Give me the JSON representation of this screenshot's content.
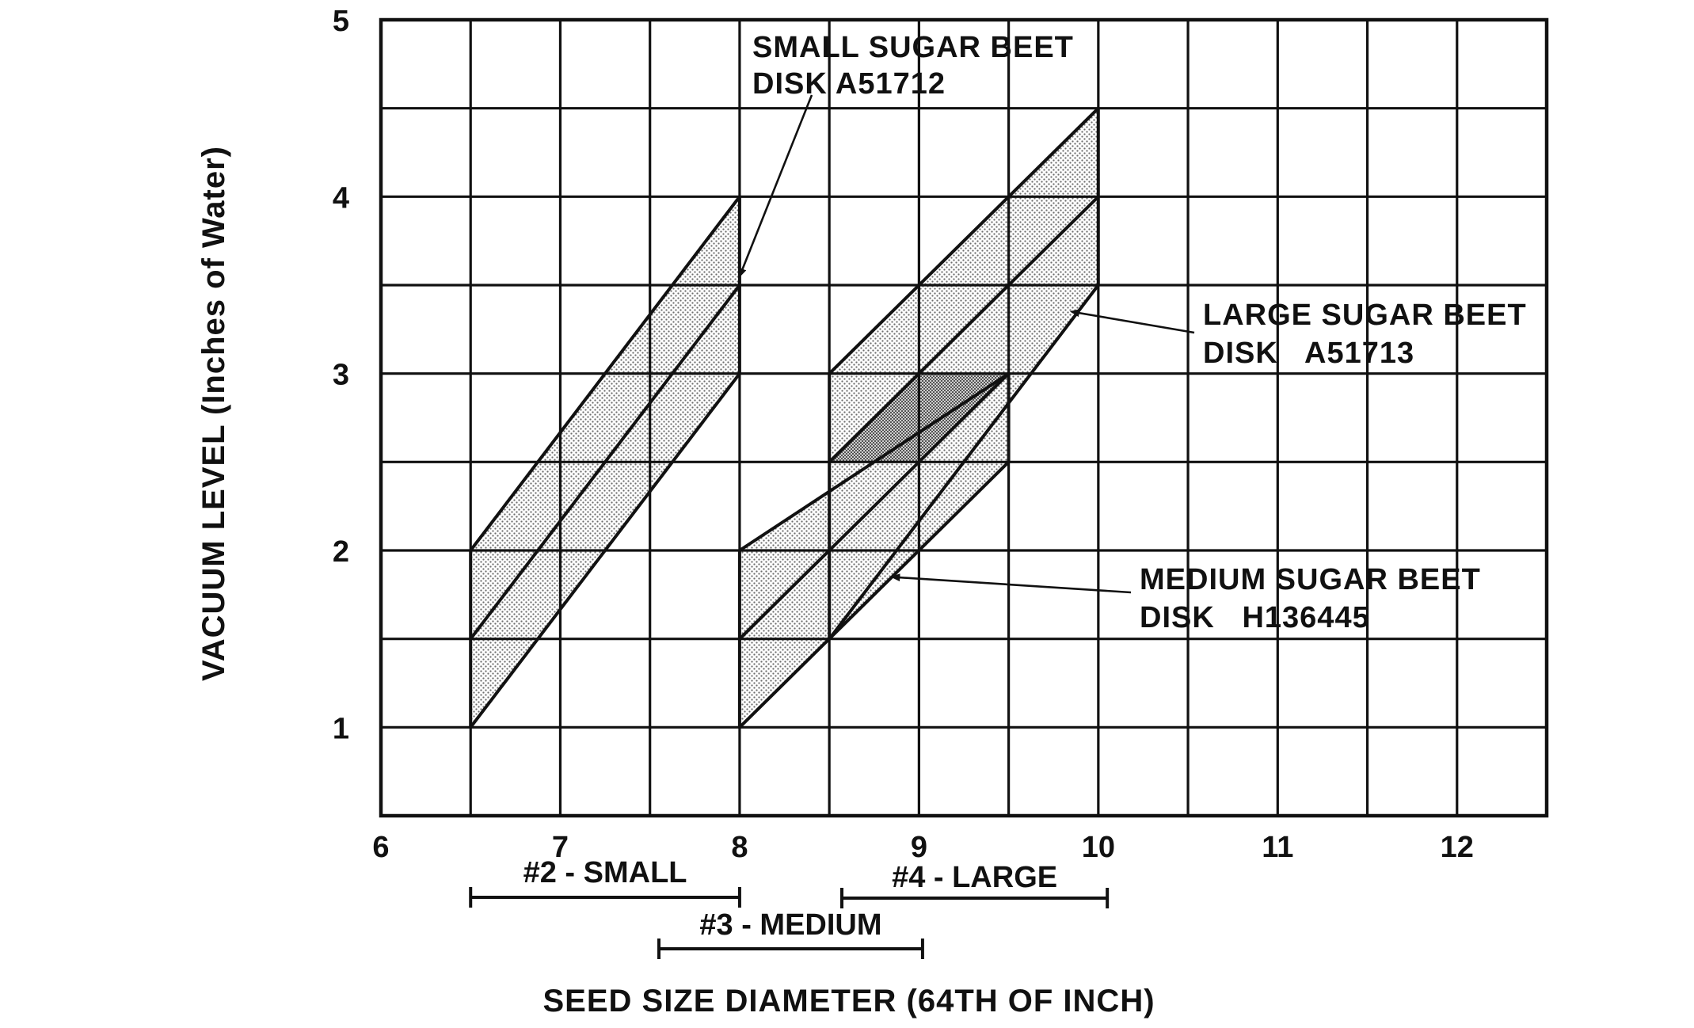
{
  "chart_data": {
    "type": "area",
    "xlabel": "SEED SIZE DIAMETER (64TH OF INCH)",
    "ylabel": "VACUUM LEVEL (Inches of Water)",
    "xlim": [
      6,
      12.5
    ],
    "ylim": [
      0.5,
      5
    ],
    "x_ticks": [
      6,
      7,
      8,
      9,
      10,
      11,
      12
    ],
    "y_ticks": [
      1,
      2,
      3,
      4,
      5
    ],
    "grid": true,
    "series": [
      {
        "name": "SMALL SUGAR BEET DISK A51712",
        "region": [
          [
            6.5,
            1
          ],
          [
            8,
            3
          ],
          [
            8,
            4
          ],
          [
            6.5,
            2
          ]
        ],
        "center_line": [
          [
            6.5,
            1.5
          ],
          [
            8,
            3.5
          ]
        ]
      },
      {
        "name": "MEDIUM SUGAR BEET DISK H136445",
        "region": [
          [
            8,
            1
          ],
          [
            9.5,
            2.5
          ],
          [
            9.5,
            3
          ],
          [
            8,
            2
          ]
        ],
        "center_line": [
          [
            8,
            1.5
          ],
          [
            9.5,
            3
          ]
        ]
      },
      {
        "name": "LARGE SUGAR BEET DISK A51713",
        "region": [
          [
            8.5,
            1.5
          ],
          [
            10,
            3.5
          ],
          [
            10,
            4.5
          ],
          [
            8.5,
            3
          ]
        ],
        "center_line": [
          [
            8.5,
            2.5
          ],
          [
            10,
            4
          ]
        ]
      }
    ],
    "annotations": [
      {
        "lines": [
          "SMALL SUGAR BEET",
          "DISK A51712"
        ],
        "points_to": [
          8,
          3.55
        ]
      },
      {
        "lines": [
          "LARGE SUGAR BEET",
          "DISK   A51713"
        ],
        "points_to": [
          9.85,
          3.35
        ]
      },
      {
        "lines": [
          "MEDIUM SUGAR BEET",
          "DISK   H136445"
        ],
        "points_to": [
          8.85,
          1.85
        ]
      }
    ],
    "size_ranges": [
      {
        "label": "#2 - SMALL",
        "from": 6.5,
        "to": 8
      },
      {
        "label": "#3 - MEDIUM",
        "from": 7.55,
        "to": 9.02
      },
      {
        "label": "#4 - LARGE",
        "from": 8.57,
        "to": 10.05
      }
    ],
    "colors": {
      "ink": "#111111",
      "shade": "#6e6e6e",
      "background": "#ffffff"
    }
  }
}
